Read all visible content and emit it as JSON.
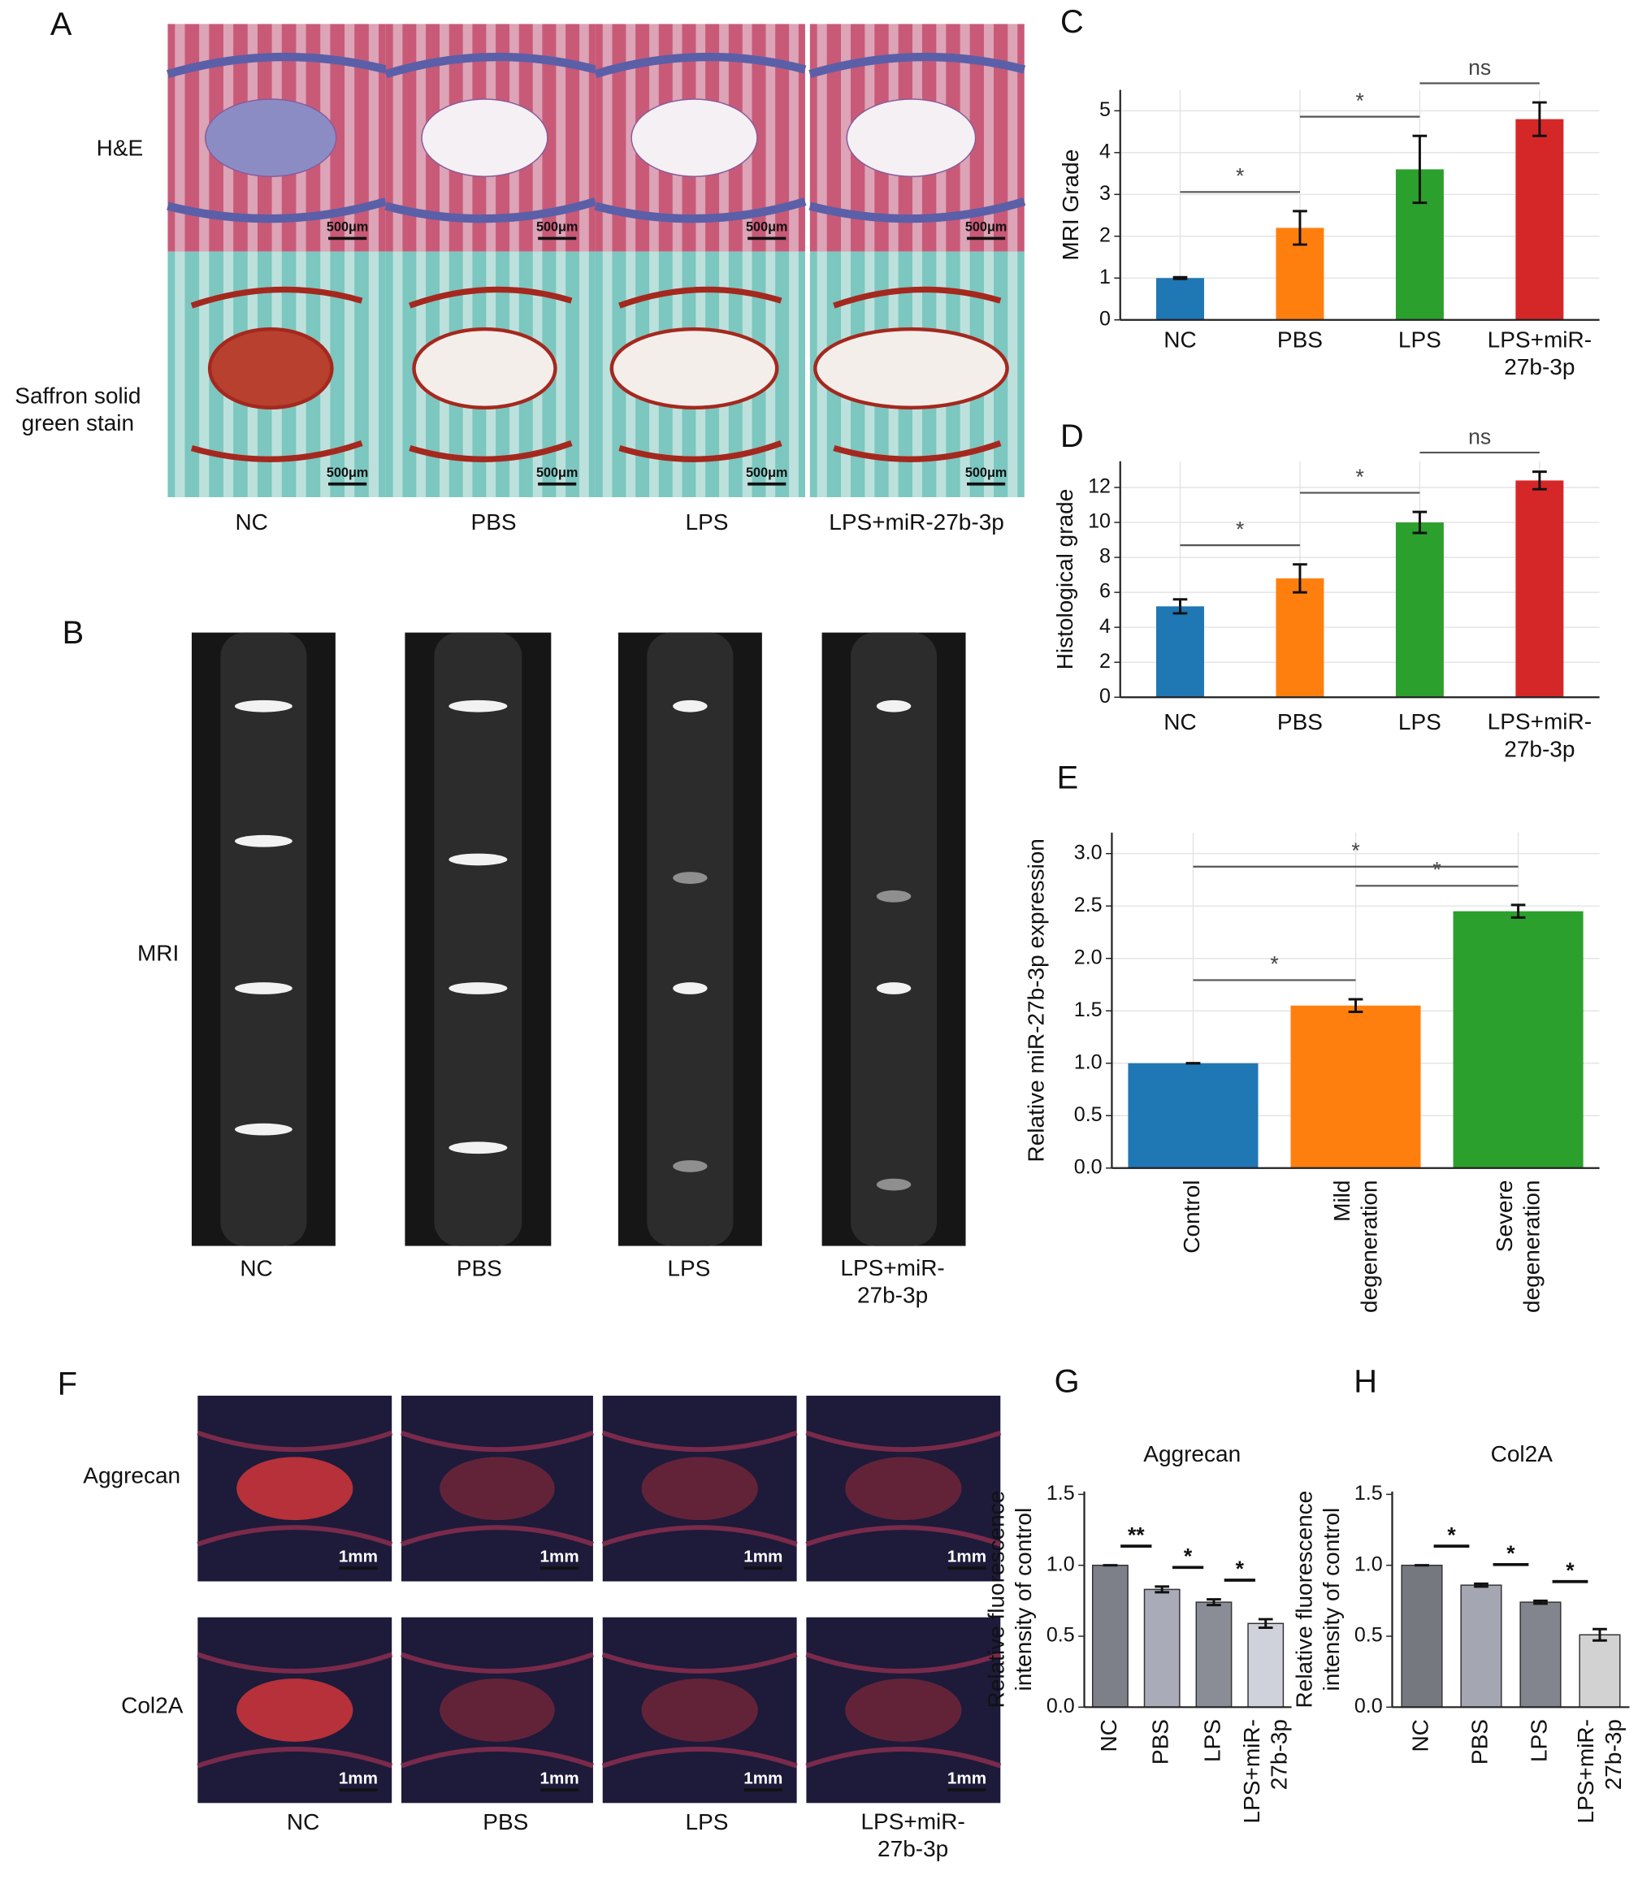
{
  "panel_a": {
    "label": "A",
    "rows": [
      "H&E",
      "Saffron solid\ngreen stain"
    ],
    "columns": [
      "NC",
      "PBS",
      "LPS",
      "LPS+miR-27b-3p"
    ],
    "scale_bar": "500μm"
  },
  "panel_b": {
    "label": "B",
    "row": "MRI",
    "columns": [
      "NC",
      "PBS",
      "LPS",
      "LPS+miR-\n27b-3p"
    ]
  },
  "panel_f": {
    "label": "F",
    "rows": [
      "Aggrecan",
      "Col2A"
    ],
    "columns": [
      "NC",
      "PBS",
      "LPS",
      "LPS+miR-\n27b-3p"
    ],
    "scale_bar": "1mm"
  },
  "chart_data": [
    {
      "panel": "C",
      "type": "bar",
      "ylabel": "MRI Grade",
      "categories": [
        "NC",
        "PBS",
        "LPS",
        "LPS+miR-\n27b-3p"
      ],
      "values": [
        1,
        2.2,
        3.6,
        4.8
      ],
      "errors": [
        0.02,
        0.4,
        0.8,
        0.4
      ],
      "colors": [
        "#1f77b4",
        "#ff7f0e",
        "#2ca02c",
        "#d62728"
      ],
      "ylim": [
        0,
        5.5
      ],
      "yticks": [
        0,
        1,
        2,
        3,
        4,
        5
      ],
      "grid": true,
      "significance": [
        {
          "from": 0,
          "to": 1,
          "label": "*"
        },
        {
          "from": 1,
          "to": 2,
          "label": "*"
        },
        {
          "from": 2,
          "to": 3,
          "label": "ns"
        }
      ]
    },
    {
      "panel": "D",
      "type": "bar",
      "ylabel": "Histological grade",
      "categories": [
        "NC",
        "PBS",
        "LPS",
        "LPS+miR-\n27b-3p"
      ],
      "values": [
        5.2,
        6.8,
        10,
        12.4
      ],
      "errors": [
        0.4,
        0.8,
        0.6,
        0.5
      ],
      "colors": [
        "#1f77b4",
        "#ff7f0e",
        "#2ca02c",
        "#d62728"
      ],
      "ylim": [
        0,
        13.5
      ],
      "yticks": [
        0,
        2,
        4,
        6,
        8,
        10,
        12
      ],
      "grid": true,
      "significance": [
        {
          "from": 0,
          "to": 1,
          "label": "*"
        },
        {
          "from": 1,
          "to": 2,
          "label": "*"
        },
        {
          "from": 2,
          "to": 3,
          "label": "ns"
        }
      ]
    },
    {
      "panel": "E",
      "type": "bar",
      "ylabel": "Relative miR-27b-3p expression",
      "categories": [
        "Control",
        "Mild\ndegeneration",
        "Severe\ndegeneration"
      ],
      "x_label_rotation": 90,
      "values": [
        1,
        1.55,
        2.45
      ],
      "errors": [
        0,
        0.06,
        0.06
      ],
      "colors": [
        "#1f77b4",
        "#ff7f0e",
        "#2ca02c"
      ],
      "ylim": [
        0,
        3.2
      ],
      "yticks": [
        {
          "value": 0,
          "label": "0.0"
        },
        0.5,
        {
          "value": 1,
          "label": "1.0"
        },
        1.5,
        {
          "value": 2,
          "label": "2.0"
        },
        2.5,
        {
          "value": 3,
          "label": "3.0"
        }
      ],
      "grid": true,
      "significance": [
        {
          "from": 0,
          "to": 1,
          "label": "*"
        },
        {
          "from": 1,
          "to": 2,
          "label": "*"
        },
        {
          "from": 0,
          "to": 2,
          "label": "*"
        }
      ]
    },
    {
      "panel": "G",
      "type": "bar",
      "title": "Aggrecan",
      "ylabel": "Relative fluorescence\nintensity of control",
      "categories": [
        "NC",
        "PBS",
        "LPS",
        "LPS+miR-\n27b-3p"
      ],
      "x_label_rotation": 90,
      "values": [
        1,
        0.83,
        0.74,
        0.59
      ],
      "errors": [
        0,
        0.02,
        0.02,
        0.03
      ],
      "colors": [
        "#7d8088",
        "#a9abb8",
        "#8a8d95",
        "#cfd2da"
      ],
      "ylim": [
        0,
        1.52
      ],
      "yticks": [
        {
          "value": 0,
          "label": "0.0"
        },
        0.5,
        {
          "value": 1,
          "label": "1.0"
        },
        1.5
      ],
      "grid": false,
      "significance": [
        {
          "from": 0,
          "to": 1,
          "label": "**"
        },
        {
          "from": 1,
          "to": 2,
          "label": "*"
        },
        {
          "from": 2,
          "to": 3,
          "label": "*"
        }
      ]
    },
    {
      "panel": "H",
      "type": "bar",
      "title": "Col2A",
      "ylabel": "Relative fluorescence\nintensity of control",
      "categories": [
        "NC",
        "PBS",
        "LPS",
        "LPS+miR-\n27b-3p"
      ],
      "x_label_rotation": 90,
      "values": [
        1,
        0.86,
        0.74,
        0.51
      ],
      "errors": [
        0,
        0.01,
        0.01,
        0.04
      ],
      "colors": [
        "#767880",
        "#a4a6b2",
        "#83858e",
        "#d2d2d2"
      ],
      "ylim": [
        0,
        1.52
      ],
      "yticks": [
        {
          "value": 0,
          "label": "0.0"
        },
        0.5,
        {
          "value": 1,
          "label": "1.0"
        },
        1.5
      ],
      "grid": false,
      "significance": [
        {
          "from": 0,
          "to": 1,
          "label": "*"
        },
        {
          "from": 1,
          "to": 2,
          "label": "*"
        },
        {
          "from": 2,
          "to": 3,
          "label": "*"
        }
      ]
    }
  ]
}
